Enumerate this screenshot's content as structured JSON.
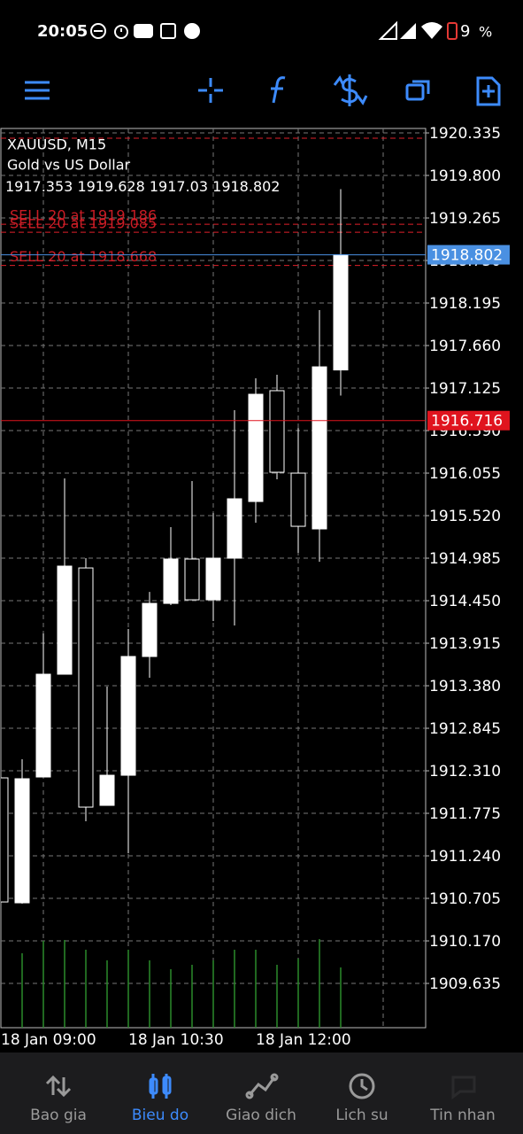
{
  "status_bar": {
    "time": "20:05",
    "battery": "9",
    "battery_unit": "%"
  },
  "chart_data": {
    "type": "candlestick",
    "symbol": "XAUUSD, M15",
    "description": "Gold vs US Dollar",
    "categories": [
      "18 Jan 09:00",
      null,
      null,
      null,
      null,
      null,
      "18 Jan 10:30",
      null,
      null,
      null,
      null,
      null,
      "18 Jan 12:00",
      null,
      null,
      null,
      null
    ],
    "candles": [
      {
        "open": 1912.221,
        "high": 1912.221,
        "low": 1910.66,
        "close": 1910.66
      },
      {
        "open": 1910.649,
        "high": 1912.455,
        "low": 1910.638,
        "close": 1912.21
      },
      {
        "open": 1912.232,
        "high": 1914.038,
        "low": 1912.232,
        "close": 1913.525
      },
      {
        "open": 1913.525,
        "high": 1915.988,
        "low": 1913.525,
        "close": 1914.885
      },
      {
        "open": 1914.862,
        "high": 1914.985,
        "low": 1911.675,
        "close": 1911.853
      },
      {
        "open": 1911.875,
        "high": 1913.369,
        "low": 1911.875,
        "close": 1912.254
      },
      {
        "open": 1912.254,
        "high": 1914.093,
        "low": 1911.273,
        "close": 1913.748
      },
      {
        "open": 1913.748,
        "high": 1914.561,
        "low": 1913.48,
        "close": 1914.416
      },
      {
        "open": 1914.416,
        "high": 1915.375,
        "low": 1914.394,
        "close": 1914.974
      },
      {
        "open": 1914.974,
        "high": 1915.955,
        "low": 1914.461,
        "close": 1914.461
      },
      {
        "open": 1914.461,
        "high": 1915.553,
        "low": 1914.194,
        "close": 1914.985
      },
      {
        "open": 1914.985,
        "high": 1916.846,
        "low": 1914.138,
        "close": 1915.732
      },
      {
        "open": 1915.698,
        "high": 1917.248,
        "low": 1915.431,
        "close": 1917.047
      },
      {
        "open": 1917.092,
        "high": 1917.292,
        "low": 1915.977,
        "close": 1916.066
      },
      {
        "open": 1916.055,
        "high": 1916.623,
        "low": 1915.052,
        "close": 1915.386
      },
      {
        "open": 1915.353,
        "high": 1918.106,
        "low": 1914.94,
        "close": 1917.392
      },
      {
        "open": 1917.353,
        "high": 1919.628,
        "low": 1917.03,
        "close": 1918.802
      }
    ],
    "volumes": [
      null,
      84,
      98,
      99,
      88,
      76,
      88,
      76,
      66,
      71,
      76,
      88,
      88,
      71,
      78,
      100,
      68
    ],
    "orders": [
      {
        "label": "SELL 20 at 1919.186",
        "price": 1919.186
      },
      {
        "label": "SELL 20 at 1919.085",
        "price": 1919.085
      },
      {
        "label": "SELL 20 at 1918.668",
        "price": 1918.668
      }
    ],
    "levels": [
      1920.268
    ],
    "bid": 1918.802,
    "ask": 1916.716,
    "ylim": [
      1909.078,
      1920.391
    ],
    "yticks": [
      {
        "value": 1920.335,
        "label": "1920.335"
      },
      {
        "value": 1919.8,
        "label": "1919.800"
      },
      {
        "value": 1919.265,
        "label": "1919.265"
      },
      {
        "value": 1918.73,
        "label": "1918.730"
      },
      {
        "value": 1918.195,
        "label": "1918.195"
      },
      {
        "value": 1917.66,
        "label": "1917.660"
      },
      {
        "value": 1917.125,
        "label": "1917.125"
      },
      {
        "value": 1916.59,
        "label": "1916.590"
      },
      1916.055,
      {
        "value": 1915.52,
        "label": "1915.520"
      },
      1914.985,
      {
        "value": 1914.45,
        "label": "1914.450"
      },
      1913.915,
      {
        "value": 1913.38,
        "label": "1913.380"
      },
      1912.845,
      {
        "value": 1912.31,
        "label": "1912.310"
      },
      1911.775,
      {
        "value": 1911.24,
        "label": "1911.240"
      },
      1910.705,
      {
        "value": 1910.17,
        "label": "1910.170"
      },
      1909.635
    ],
    "grid": true,
    "colors": {
      "bull": "#ffffff",
      "bear": "#000000",
      "volume": "#2a8a2a",
      "bid": "#4a90e2",
      "ask": "#e0141e",
      "order": "#e0202a"
    }
  },
  "nav": [
    {
      "label": "Bao gia",
      "active": false
    },
    {
      "label": "Bieu do",
      "active": true
    },
    {
      "label": "Giao dich",
      "active": false
    },
    {
      "label": "Lich su",
      "active": false
    },
    {
      "label": "Tin nhan",
      "active": false
    }
  ]
}
